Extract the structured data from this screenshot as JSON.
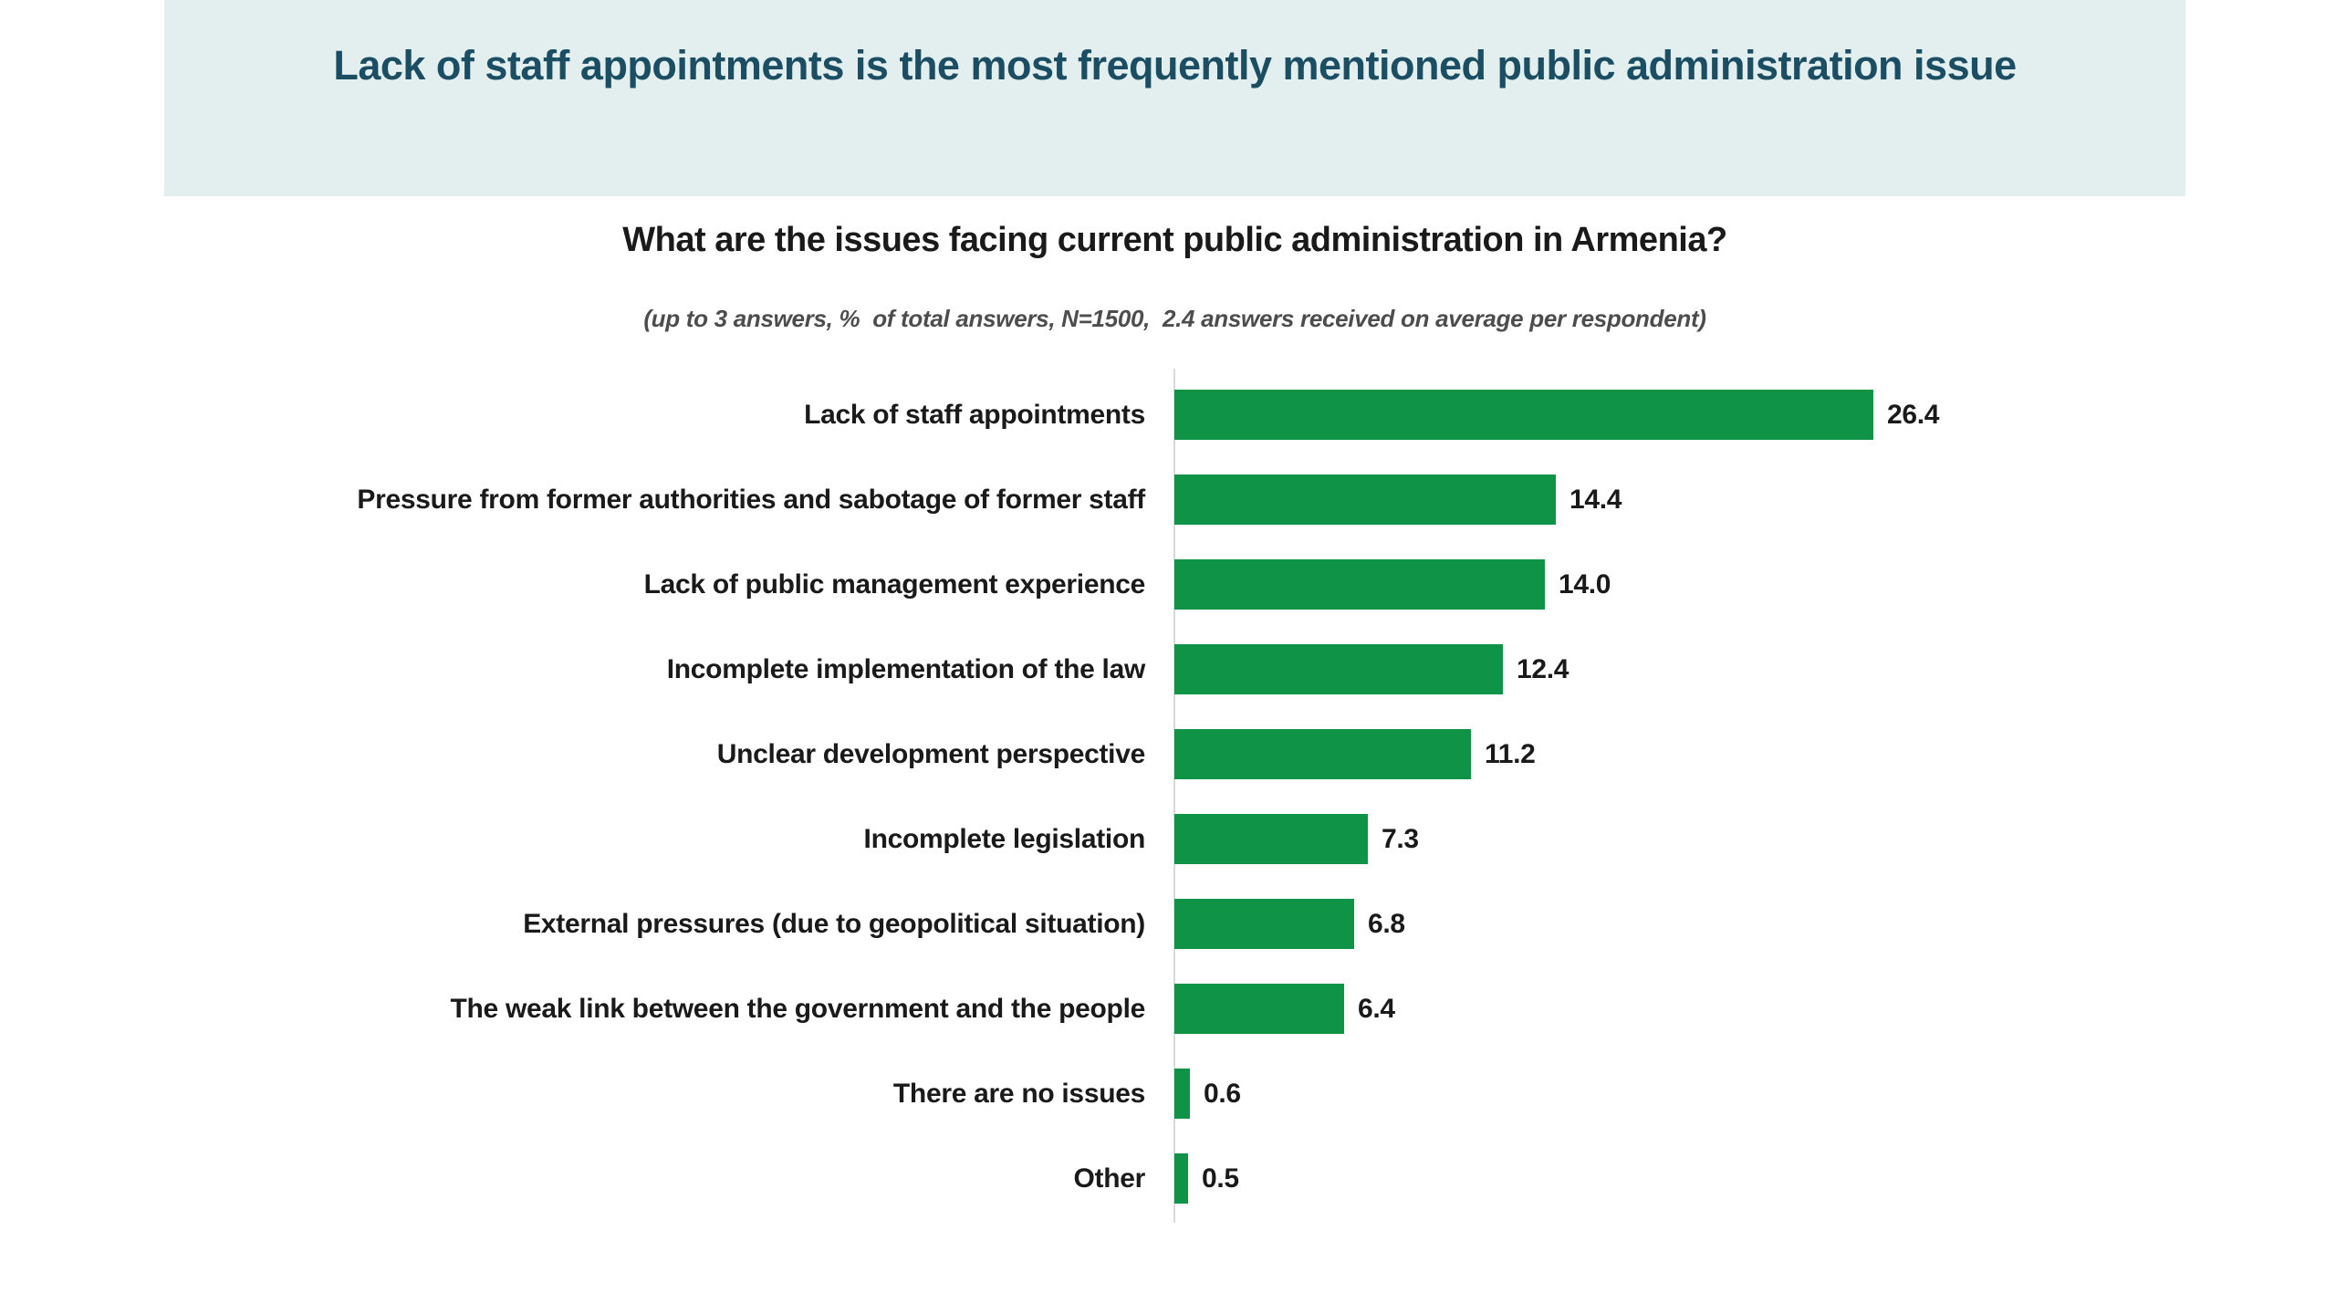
{
  "banner": {
    "title": "Lack of staff appointments is the most frequently mentioned public administration issue",
    "bg_color": "#e2efee",
    "text_color": "#1b4d63"
  },
  "chart_data": {
    "type": "bar",
    "orientation": "horizontal",
    "title": "What are the issues facing current public administration in Armenia?",
    "subtitle": "(up to 3 answers, %  of total answers, N=1500,  2.4 answers received on average per respondent)",
    "xlabel": "",
    "ylabel": "",
    "xlim": [
      0,
      27.5
    ],
    "grid": false,
    "legend": null,
    "data_labels": "outside-end",
    "bar_color": "#0f9447",
    "axis_line_color": "#d9d9d9",
    "categories": [
      "Lack of staff appointments",
      "Pressure from former authorities and sabotage of former staff",
      "Lack of public management experience",
      "Incomplete implementation of the law",
      "Unclear development perspective",
      "Incomplete legislation",
      "External pressures (due to geopolitical situation)",
      "The weak link between the government and the people",
      "There are no issues",
      "Other"
    ],
    "values": [
      26.4,
      14.4,
      14.0,
      12.4,
      11.2,
      7.3,
      6.8,
      6.4,
      0.6,
      0.5
    ],
    "bars": [
      {
        "category": "Lack of staff appointments",
        "value": 26.4,
        "display": "26.4"
      },
      {
        "category": "Pressure from former authorities and sabotage of former staff",
        "value": 14.4,
        "display": "14.4"
      },
      {
        "category": "Lack of public management experience",
        "value": 14.0,
        "display": "14.0"
      },
      {
        "category": "Incomplete implementation of the law",
        "value": 12.4,
        "display": "12.4"
      },
      {
        "category": "Unclear development perspective",
        "value": 11.2,
        "display": "11.2"
      },
      {
        "category": "Incomplete legislation",
        "value": 7.3,
        "display": "7.3"
      },
      {
        "category": "External pressures (due to geopolitical situation)",
        "value": 6.8,
        "display": "6.8"
      },
      {
        "category": "The weak link between the government and the people",
        "value": 6.4,
        "display": "6.4"
      },
      {
        "category": "There are no issues",
        "value": 0.6,
        "display": "0.6"
      },
      {
        "category": "Other",
        "value": 0.5,
        "display": "0.5"
      }
    ]
  }
}
